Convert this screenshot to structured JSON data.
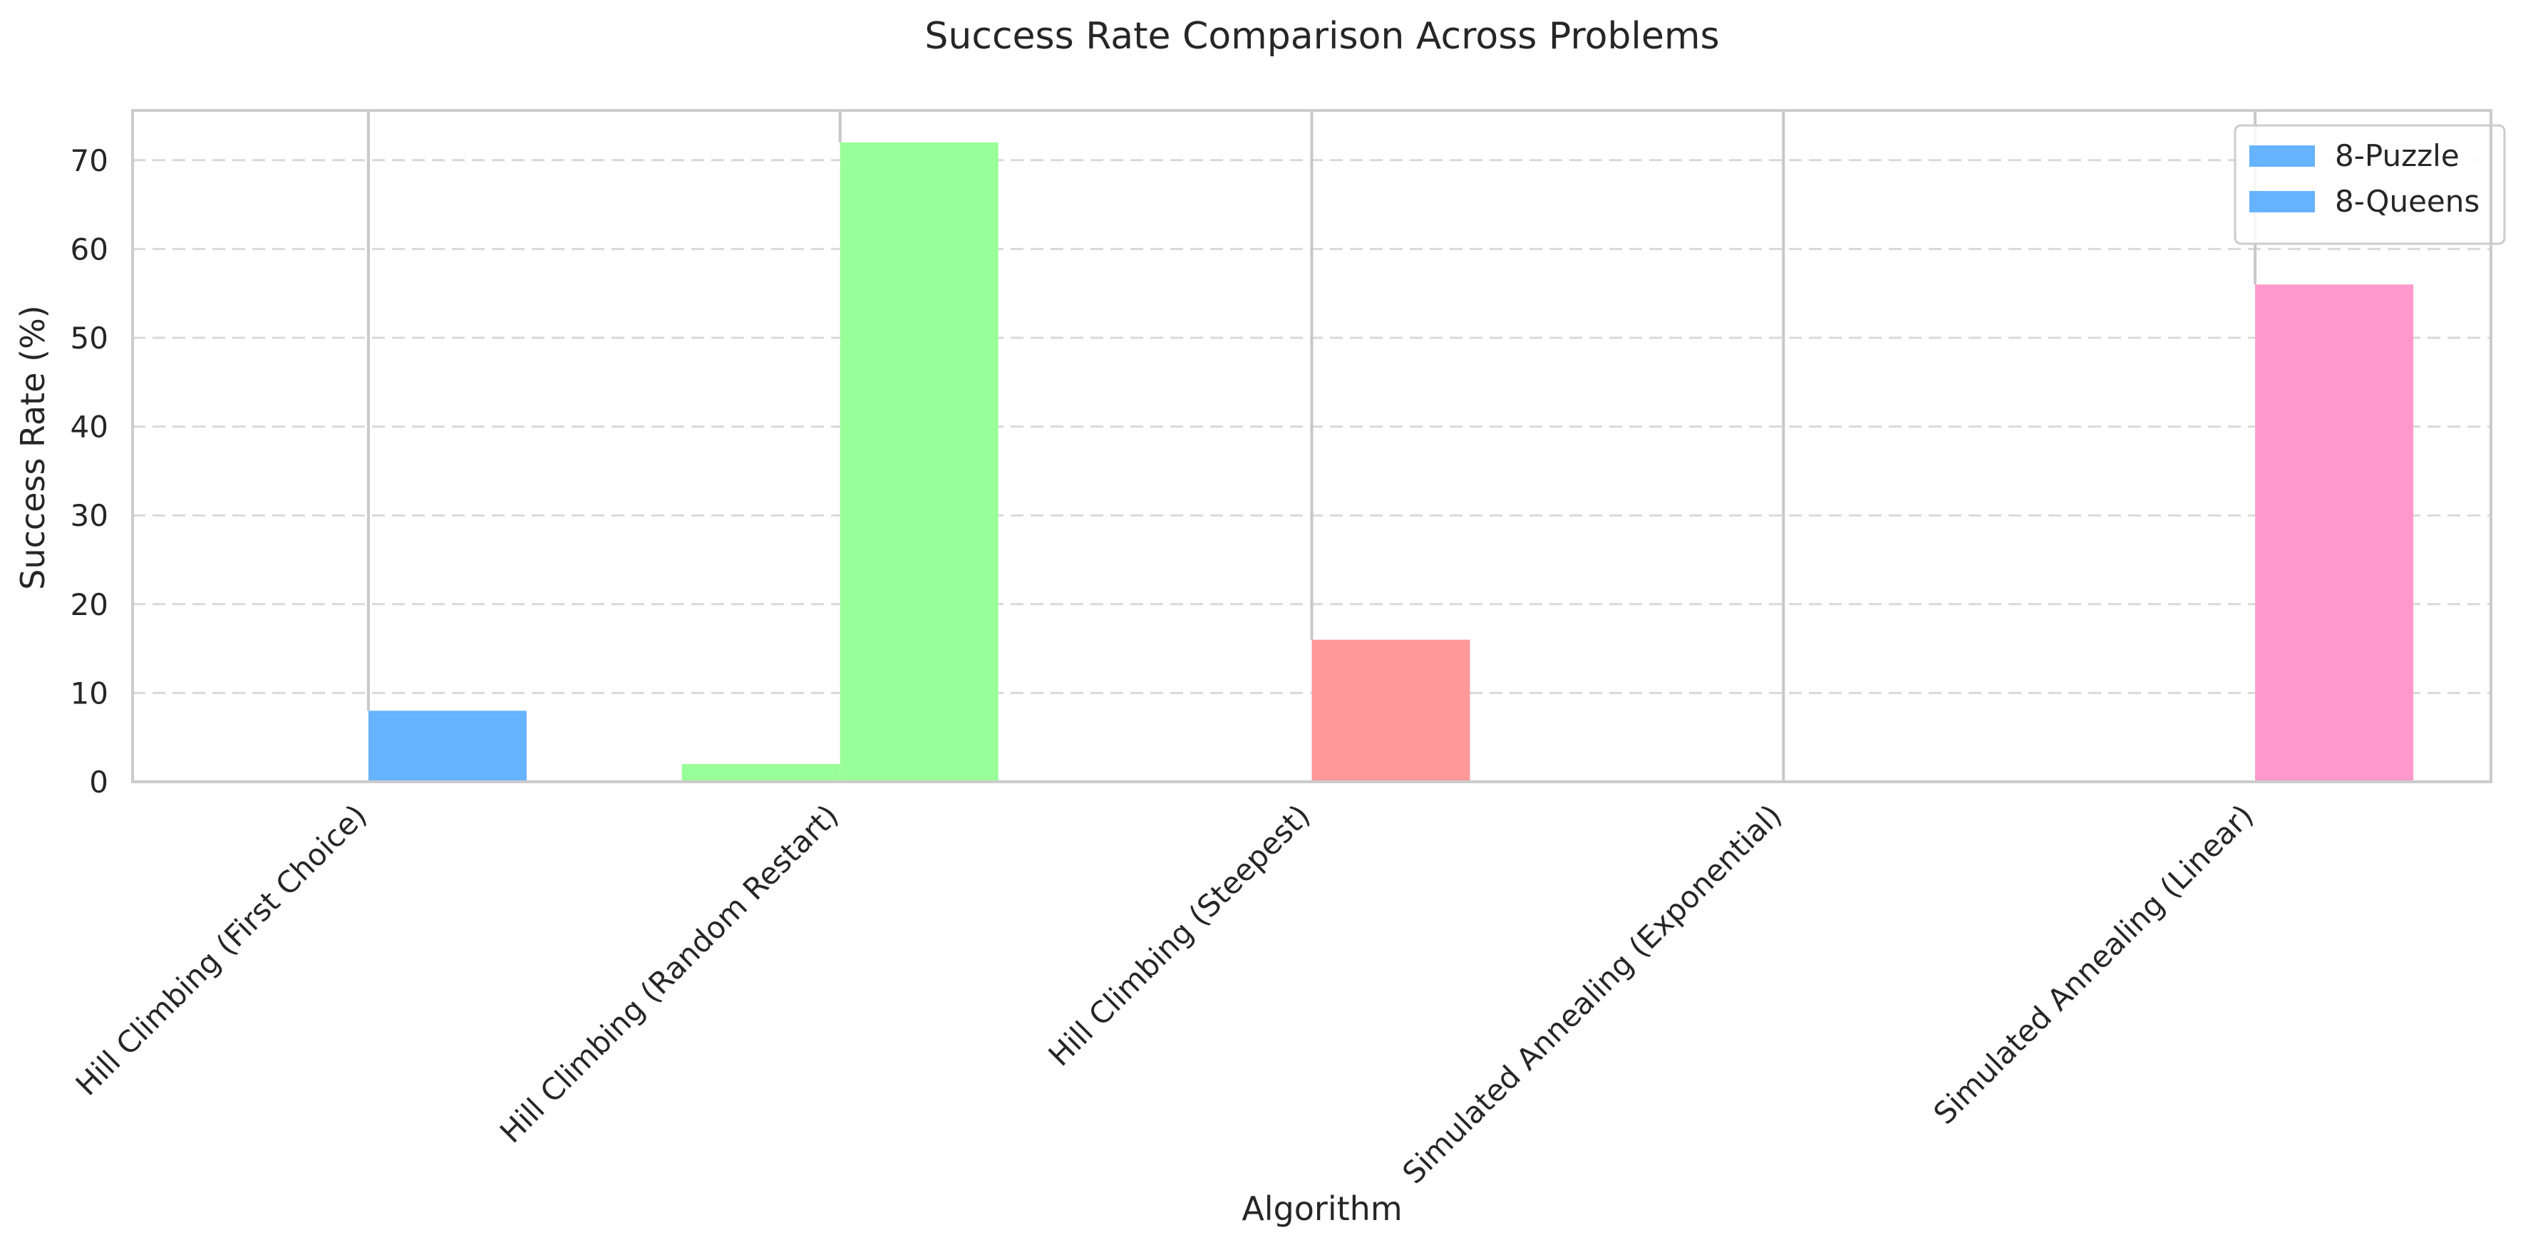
{
  "chart_data": {
    "type": "bar",
    "title": "Success Rate Comparison Across Problems",
    "xlabel": "Algorithm",
    "ylabel": "Success Rate (%)",
    "categories": [
      "Hill Climbing (First Choice)",
      "Hill Climbing (Random Restart)",
      "Hill Climbing (Steepest)",
      "Simulated Annealing (Exponential)",
      "Simulated Annealing (Linear)"
    ],
    "series": [
      {
        "name": "8-Puzzle",
        "values": [
          0,
          2,
          0,
          0,
          0
        ]
      },
      {
        "name": "8-Queens",
        "values": [
          8,
          72,
          16,
          0,
          56
        ]
      }
    ],
    "bar_colors": [
      "#66b3ff",
      "#99ff99",
      "#ff9999",
      "#ffcc99",
      "#ff99cc"
    ],
    "legend_colors": [
      "#66b3ff",
      "#66b3ff"
    ],
    "ylim": [
      0,
      75.6
    ],
    "yticks": [
      0,
      10,
      20,
      30,
      40,
      50,
      60,
      70
    ],
    "grid": "y-dashed",
    "legend_position": "top-right"
  }
}
